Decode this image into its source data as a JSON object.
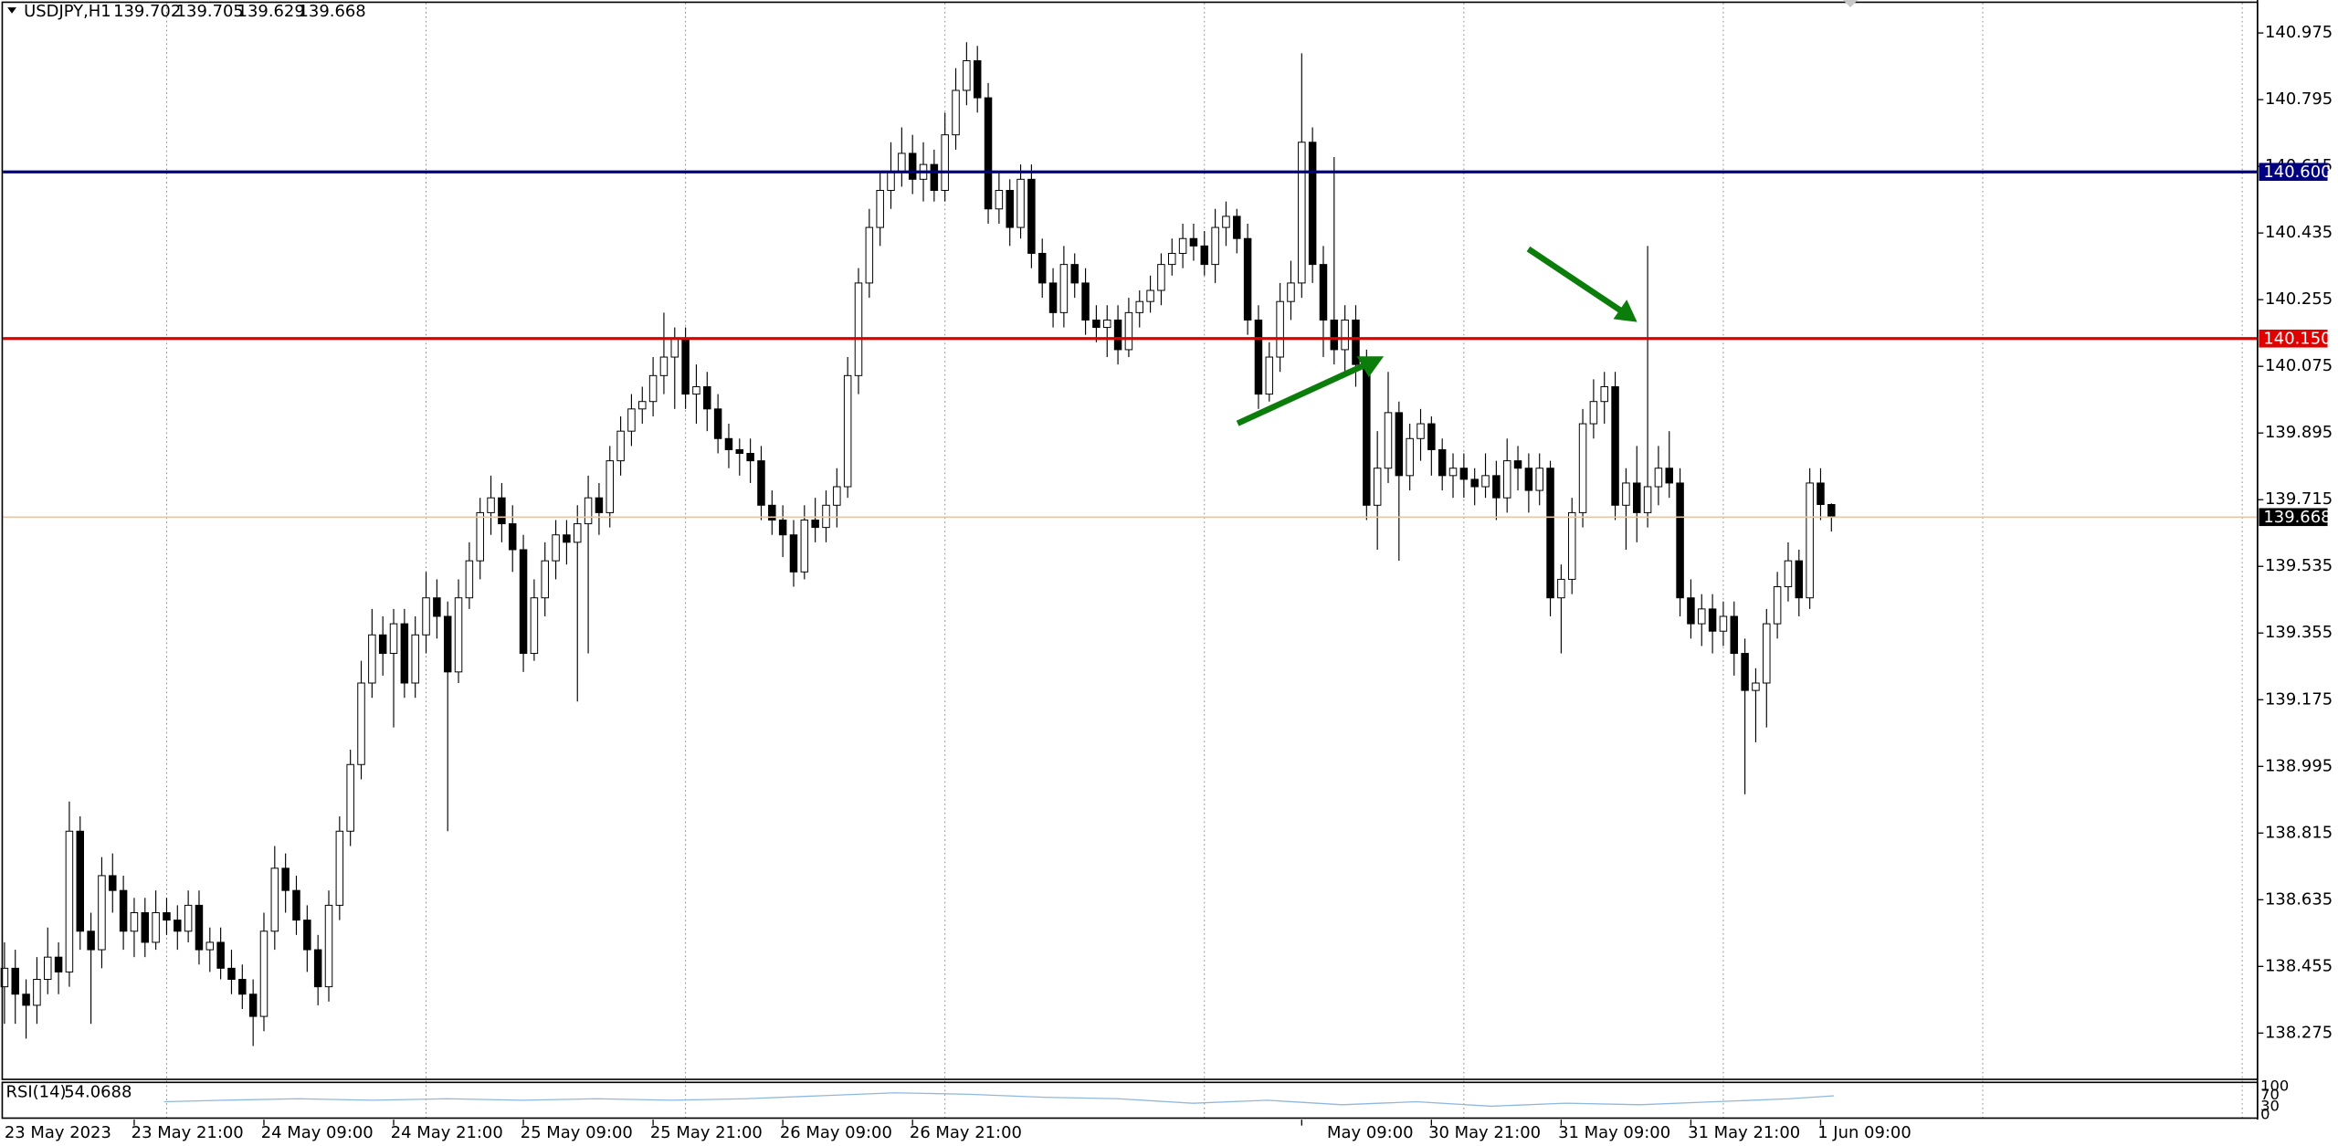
{
  "chart_data": {
    "type": "candlestick",
    "symbol": "USDJPY,H1",
    "candles": [
      [
        138.4,
        138.52,
        138.3,
        138.45
      ],
      [
        138.45,
        138.5,
        138.3,
        138.38
      ],
      [
        138.38,
        138.42,
        138.26,
        138.35
      ],
      [
        138.35,
        138.48,
        138.3,
        138.42
      ],
      [
        138.42,
        138.56,
        138.38,
        138.48
      ],
      [
        138.48,
        138.52,
        138.38,
        138.44
      ],
      [
        138.44,
        138.9,
        138.4,
        138.82
      ],
      [
        138.82,
        138.86,
        138.5,
        138.55
      ],
      [
        138.55,
        138.6,
        138.3,
        138.5
      ],
      [
        138.5,
        138.75,
        138.45,
        138.7
      ],
      [
        138.7,
        138.76,
        138.6,
        138.66
      ],
      [
        138.66,
        138.7,
        138.5,
        138.55
      ],
      [
        138.55,
        138.64,
        138.48,
        138.6
      ],
      [
        138.6,
        138.64,
        138.48,
        138.52
      ],
      [
        138.52,
        138.66,
        138.5,
        138.6
      ],
      [
        138.6,
        138.64,
        138.54,
        138.58
      ],
      [
        138.58,
        138.62,
        138.5,
        138.55
      ],
      [
        138.55,
        138.66,
        138.52,
        138.62
      ],
      [
        138.62,
        138.66,
        138.46,
        138.5
      ],
      [
        138.5,
        138.56,
        138.44,
        138.52
      ],
      [
        138.52,
        138.56,
        138.42,
        138.45
      ],
      [
        138.45,
        138.5,
        138.38,
        138.42
      ],
      [
        138.42,
        138.46,
        138.34,
        138.38
      ],
      [
        138.38,
        138.42,
        138.24,
        138.32
      ],
      [
        138.32,
        138.6,
        138.28,
        138.55
      ],
      [
        138.55,
        138.78,
        138.5,
        138.72
      ],
      [
        138.72,
        138.76,
        138.6,
        138.66
      ],
      [
        138.66,
        138.7,
        138.54,
        138.58
      ],
      [
        138.58,
        138.62,
        138.44,
        138.5
      ],
      [
        138.5,
        138.54,
        138.35,
        138.4
      ],
      [
        138.4,
        138.66,
        138.36,
        138.62
      ],
      [
        138.62,
        138.86,
        138.58,
        138.82
      ],
      [
        138.82,
        139.04,
        138.78,
        139.0
      ],
      [
        139.0,
        139.28,
        138.96,
        139.22
      ],
      [
        139.22,
        139.42,
        139.18,
        139.35
      ],
      [
        139.35,
        139.4,
        139.24,
        139.3
      ],
      [
        139.3,
        139.42,
        139.1,
        139.38
      ],
      [
        139.38,
        139.42,
        139.18,
        139.22
      ],
      [
        139.22,
        139.4,
        139.18,
        139.35
      ],
      [
        139.35,
        139.52,
        139.3,
        139.45
      ],
      [
        139.45,
        139.5,
        139.34,
        139.4
      ],
      [
        139.4,
        139.44,
        138.82,
        139.25
      ],
      [
        139.25,
        139.5,
        139.22,
        139.45
      ],
      [
        139.45,
        139.6,
        139.42,
        139.55
      ],
      [
        139.55,
        139.72,
        139.5,
        139.68
      ],
      [
        139.68,
        139.78,
        139.62,
        139.72
      ],
      [
        139.72,
        139.76,
        139.6,
        139.65
      ],
      [
        139.65,
        139.7,
        139.52,
        139.58
      ],
      [
        139.58,
        139.62,
        139.25,
        139.3
      ],
      [
        139.3,
        139.5,
        139.28,
        139.45
      ],
      [
        139.45,
        139.6,
        139.4,
        139.55
      ],
      [
        139.55,
        139.66,
        139.5,
        139.62
      ],
      [
        139.62,
        139.66,
        139.54,
        139.6
      ],
      [
        139.6,
        139.7,
        139.17,
        139.65
      ],
      [
        139.65,
        139.78,
        139.3,
        139.72
      ],
      [
        139.72,
        139.76,
        139.62,
        139.68
      ],
      [
        139.68,
        139.86,
        139.64,
        139.82
      ],
      [
        139.82,
        139.94,
        139.78,
        139.9
      ],
      [
        139.9,
        140.0,
        139.86,
        139.96
      ],
      [
        139.96,
        140.02,
        139.92,
        139.98
      ],
      [
        139.98,
        140.1,
        139.94,
        140.05
      ],
      [
        140.05,
        140.22,
        140.0,
        140.1
      ],
      [
        140.1,
        140.18,
        139.96,
        140.15
      ],
      [
        140.15,
        140.18,
        139.96,
        140.0
      ],
      [
        140.0,
        140.08,
        139.92,
        140.02
      ],
      [
        140.02,
        140.06,
        139.9,
        139.96
      ],
      [
        139.96,
        140.0,
        139.84,
        139.88
      ],
      [
        139.88,
        139.92,
        139.8,
        139.85
      ],
      [
        139.85,
        139.88,
        139.78,
        139.84
      ],
      [
        139.84,
        139.88,
        139.76,
        139.82
      ],
      [
        139.82,
        139.86,
        139.66,
        139.7
      ],
      [
        139.7,
        139.74,
        139.62,
        139.66
      ],
      [
        139.66,
        139.7,
        139.56,
        139.62
      ],
      [
        139.62,
        139.66,
        139.48,
        139.52
      ],
      [
        139.52,
        139.7,
        139.5,
        139.66
      ],
      [
        139.66,
        139.72,
        139.6,
        139.64
      ],
      [
        139.64,
        139.74,
        139.6,
        139.7
      ],
      [
        139.7,
        139.8,
        139.64,
        139.75
      ],
      [
        139.75,
        140.1,
        139.72,
        140.05
      ],
      [
        140.05,
        140.34,
        140.0,
        140.3
      ],
      [
        140.3,
        140.5,
        140.26,
        140.45
      ],
      [
        140.45,
        140.6,
        140.4,
        140.55
      ],
      [
        140.55,
        140.68,
        140.5,
        140.6
      ],
      [
        140.6,
        140.72,
        140.56,
        140.65
      ],
      [
        140.65,
        140.7,
        140.54,
        140.58
      ],
      [
        140.58,
        140.68,
        140.52,
        140.62
      ],
      [
        140.62,
        140.66,
        140.52,
        140.55
      ],
      [
        140.55,
        140.76,
        140.52,
        140.7
      ],
      [
        140.7,
        140.88,
        140.66,
        140.82
      ],
      [
        140.82,
        140.95,
        140.78,
        140.9
      ],
      [
        140.9,
        140.94,
        140.76,
        140.8
      ],
      [
        140.8,
        140.84,
        140.46,
        140.5
      ],
      [
        140.5,
        140.6,
        140.46,
        140.55
      ],
      [
        140.55,
        140.58,
        140.4,
        140.45
      ],
      [
        140.45,
        140.62,
        140.42,
        140.58
      ],
      [
        140.58,
        140.62,
        140.34,
        140.38
      ],
      [
        140.38,
        140.42,
        140.26,
        140.3
      ],
      [
        140.3,
        140.34,
        140.18,
        140.22
      ],
      [
        140.22,
        140.4,
        140.18,
        140.35
      ],
      [
        140.35,
        140.38,
        140.26,
        140.3
      ],
      [
        140.3,
        140.34,
        140.16,
        140.2
      ],
      [
        140.2,
        140.24,
        140.14,
        140.18
      ],
      [
        140.18,
        140.24,
        140.1,
        140.2
      ],
      [
        140.2,
        140.24,
        140.08,
        140.12
      ],
      [
        140.12,
        140.26,
        140.1,
        140.22
      ],
      [
        140.22,
        140.28,
        140.18,
        140.25
      ],
      [
        140.25,
        140.32,
        140.22,
        140.28
      ],
      [
        140.28,
        140.38,
        140.24,
        140.35
      ],
      [
        140.35,
        140.42,
        140.32,
        140.38
      ],
      [
        140.38,
        140.46,
        140.34,
        140.42
      ],
      [
        140.42,
        140.46,
        140.36,
        140.4
      ],
      [
        140.4,
        140.44,
        140.32,
        140.35
      ],
      [
        140.35,
        140.5,
        140.3,
        140.45
      ],
      [
        140.45,
        140.52,
        140.4,
        140.48
      ],
      [
        140.48,
        140.5,
        140.38,
        140.42
      ],
      [
        140.42,
        140.46,
        140.16,
        140.2
      ],
      [
        140.2,
        140.24,
        139.96,
        140.0
      ],
      [
        140.0,
        140.14,
        139.98,
        140.1
      ],
      [
        140.1,
        140.3,
        140.06,
        140.25
      ],
      [
        140.25,
        140.36,
        140.2,
        140.3
      ],
      [
        140.3,
        140.92,
        140.26,
        140.68
      ],
      [
        140.68,
        140.72,
        140.3,
        140.35
      ],
      [
        140.35,
        140.4,
        140.1,
        140.2
      ],
      [
        140.2,
        140.64,
        140.08,
        140.12
      ],
      [
        140.12,
        140.24,
        140.06,
        140.2
      ],
      [
        140.2,
        140.24,
        140.02,
        140.08
      ],
      [
        140.08,
        140.12,
        139.66,
        139.7
      ],
      [
        139.7,
        139.9,
        139.58,
        139.8
      ],
      [
        139.8,
        140.06,
        139.76,
        139.95
      ],
      [
        139.95,
        139.98,
        139.55,
        139.78
      ],
      [
        139.78,
        139.92,
        139.74,
        139.88
      ],
      [
        139.88,
        139.96,
        139.82,
        139.92
      ],
      [
        139.92,
        139.94,
        139.78,
        139.85
      ],
      [
        139.85,
        139.88,
        139.74,
        139.78
      ],
      [
        139.78,
        139.84,
        139.72,
        139.8
      ],
      [
        139.8,
        139.84,
        139.72,
        139.77
      ],
      [
        139.77,
        139.8,
        139.7,
        139.75
      ],
      [
        139.75,
        139.84,
        139.72,
        139.78
      ],
      [
        139.78,
        139.82,
        139.66,
        139.72
      ],
      [
        139.72,
        139.88,
        139.68,
        139.82
      ],
      [
        139.82,
        139.86,
        139.74,
        139.8
      ],
      [
        139.8,
        139.84,
        139.68,
        139.74
      ],
      [
        139.74,
        139.84,
        139.7,
        139.8
      ],
      [
        139.8,
        139.82,
        139.4,
        139.45
      ],
      [
        139.45,
        139.54,
        139.3,
        139.5
      ],
      [
        139.5,
        139.72,
        139.46,
        139.68
      ],
      [
        139.68,
        139.96,
        139.64,
        139.92
      ],
      [
        139.92,
        140.04,
        139.88,
        139.98
      ],
      [
        139.98,
        140.06,
        139.92,
        140.02
      ],
      [
        140.02,
        140.06,
        139.66,
        139.7
      ],
      [
        139.7,
        139.8,
        139.58,
        139.76
      ],
      [
        139.76,
        139.86,
        139.6,
        139.68
      ],
      [
        139.68,
        140.4,
        139.64,
        139.75
      ],
      [
        139.75,
        139.86,
        139.7,
        139.8
      ],
      [
        139.8,
        139.9,
        139.72,
        139.76
      ],
      [
        139.76,
        139.8,
        139.4,
        139.45
      ],
      [
        139.45,
        139.5,
        139.34,
        139.38
      ],
      [
        139.38,
        139.46,
        139.32,
        139.42
      ],
      [
        139.42,
        139.46,
        139.3,
        139.36
      ],
      [
        139.36,
        139.44,
        139.32,
        139.4
      ],
      [
        139.4,
        139.44,
        139.24,
        139.3
      ],
      [
        139.3,
        139.34,
        138.92,
        139.2
      ],
      [
        139.2,
        139.26,
        139.06,
        139.22
      ],
      [
        139.22,
        139.42,
        139.1,
        139.38
      ],
      [
        139.38,
        139.52,
        139.34,
        139.48
      ],
      [
        139.48,
        139.6,
        139.44,
        139.55
      ],
      [
        139.55,
        139.58,
        139.4,
        139.45
      ],
      [
        139.45,
        139.8,
        139.42,
        139.76
      ],
      [
        139.76,
        139.8,
        139.66,
        139.702
      ],
      [
        139.702,
        139.705,
        139.629,
        139.668
      ]
    ],
    "ylim": [
      138.15,
      141.064
    ],
    "yticks": [
      140.975,
      140.795,
      140.615,
      140.435,
      140.255,
      140.075,
      139.895,
      139.715,
      139.535,
      139.355,
      139.175,
      138.995,
      138.815,
      138.635,
      138.455,
      138.275
    ],
    "levels": [
      {
        "value": 140.6,
        "label": "140.600",
        "color": "#000080"
      },
      {
        "value": 140.15,
        "label": "140.150",
        "color": "#e00000"
      }
    ],
    "price_line": {
      "value": 139.668,
      "color": "#e8c4a8"
    },
    "time_labels": [
      "23 May 2023",
      "23 May 21:00",
      "24 May 09:00",
      "24 May 21:00",
      "25 May 09:00",
      "25 May 21:00",
      "26 May 09:00",
      "26 May 21:00",
      null,
      null,
      "May 09:00",
      "30 May 21:00",
      "31 May 09:00",
      "31 May 21:00",
      "1 Jun 09:00"
    ],
    "indicator": {
      "name": "RSI(14)",
      "value": 54.0688,
      "ylim": [
        0,
        100
      ],
      "yticks": [
        100,
        70,
        30,
        0
      ]
    },
    "grid": true
  }
}
